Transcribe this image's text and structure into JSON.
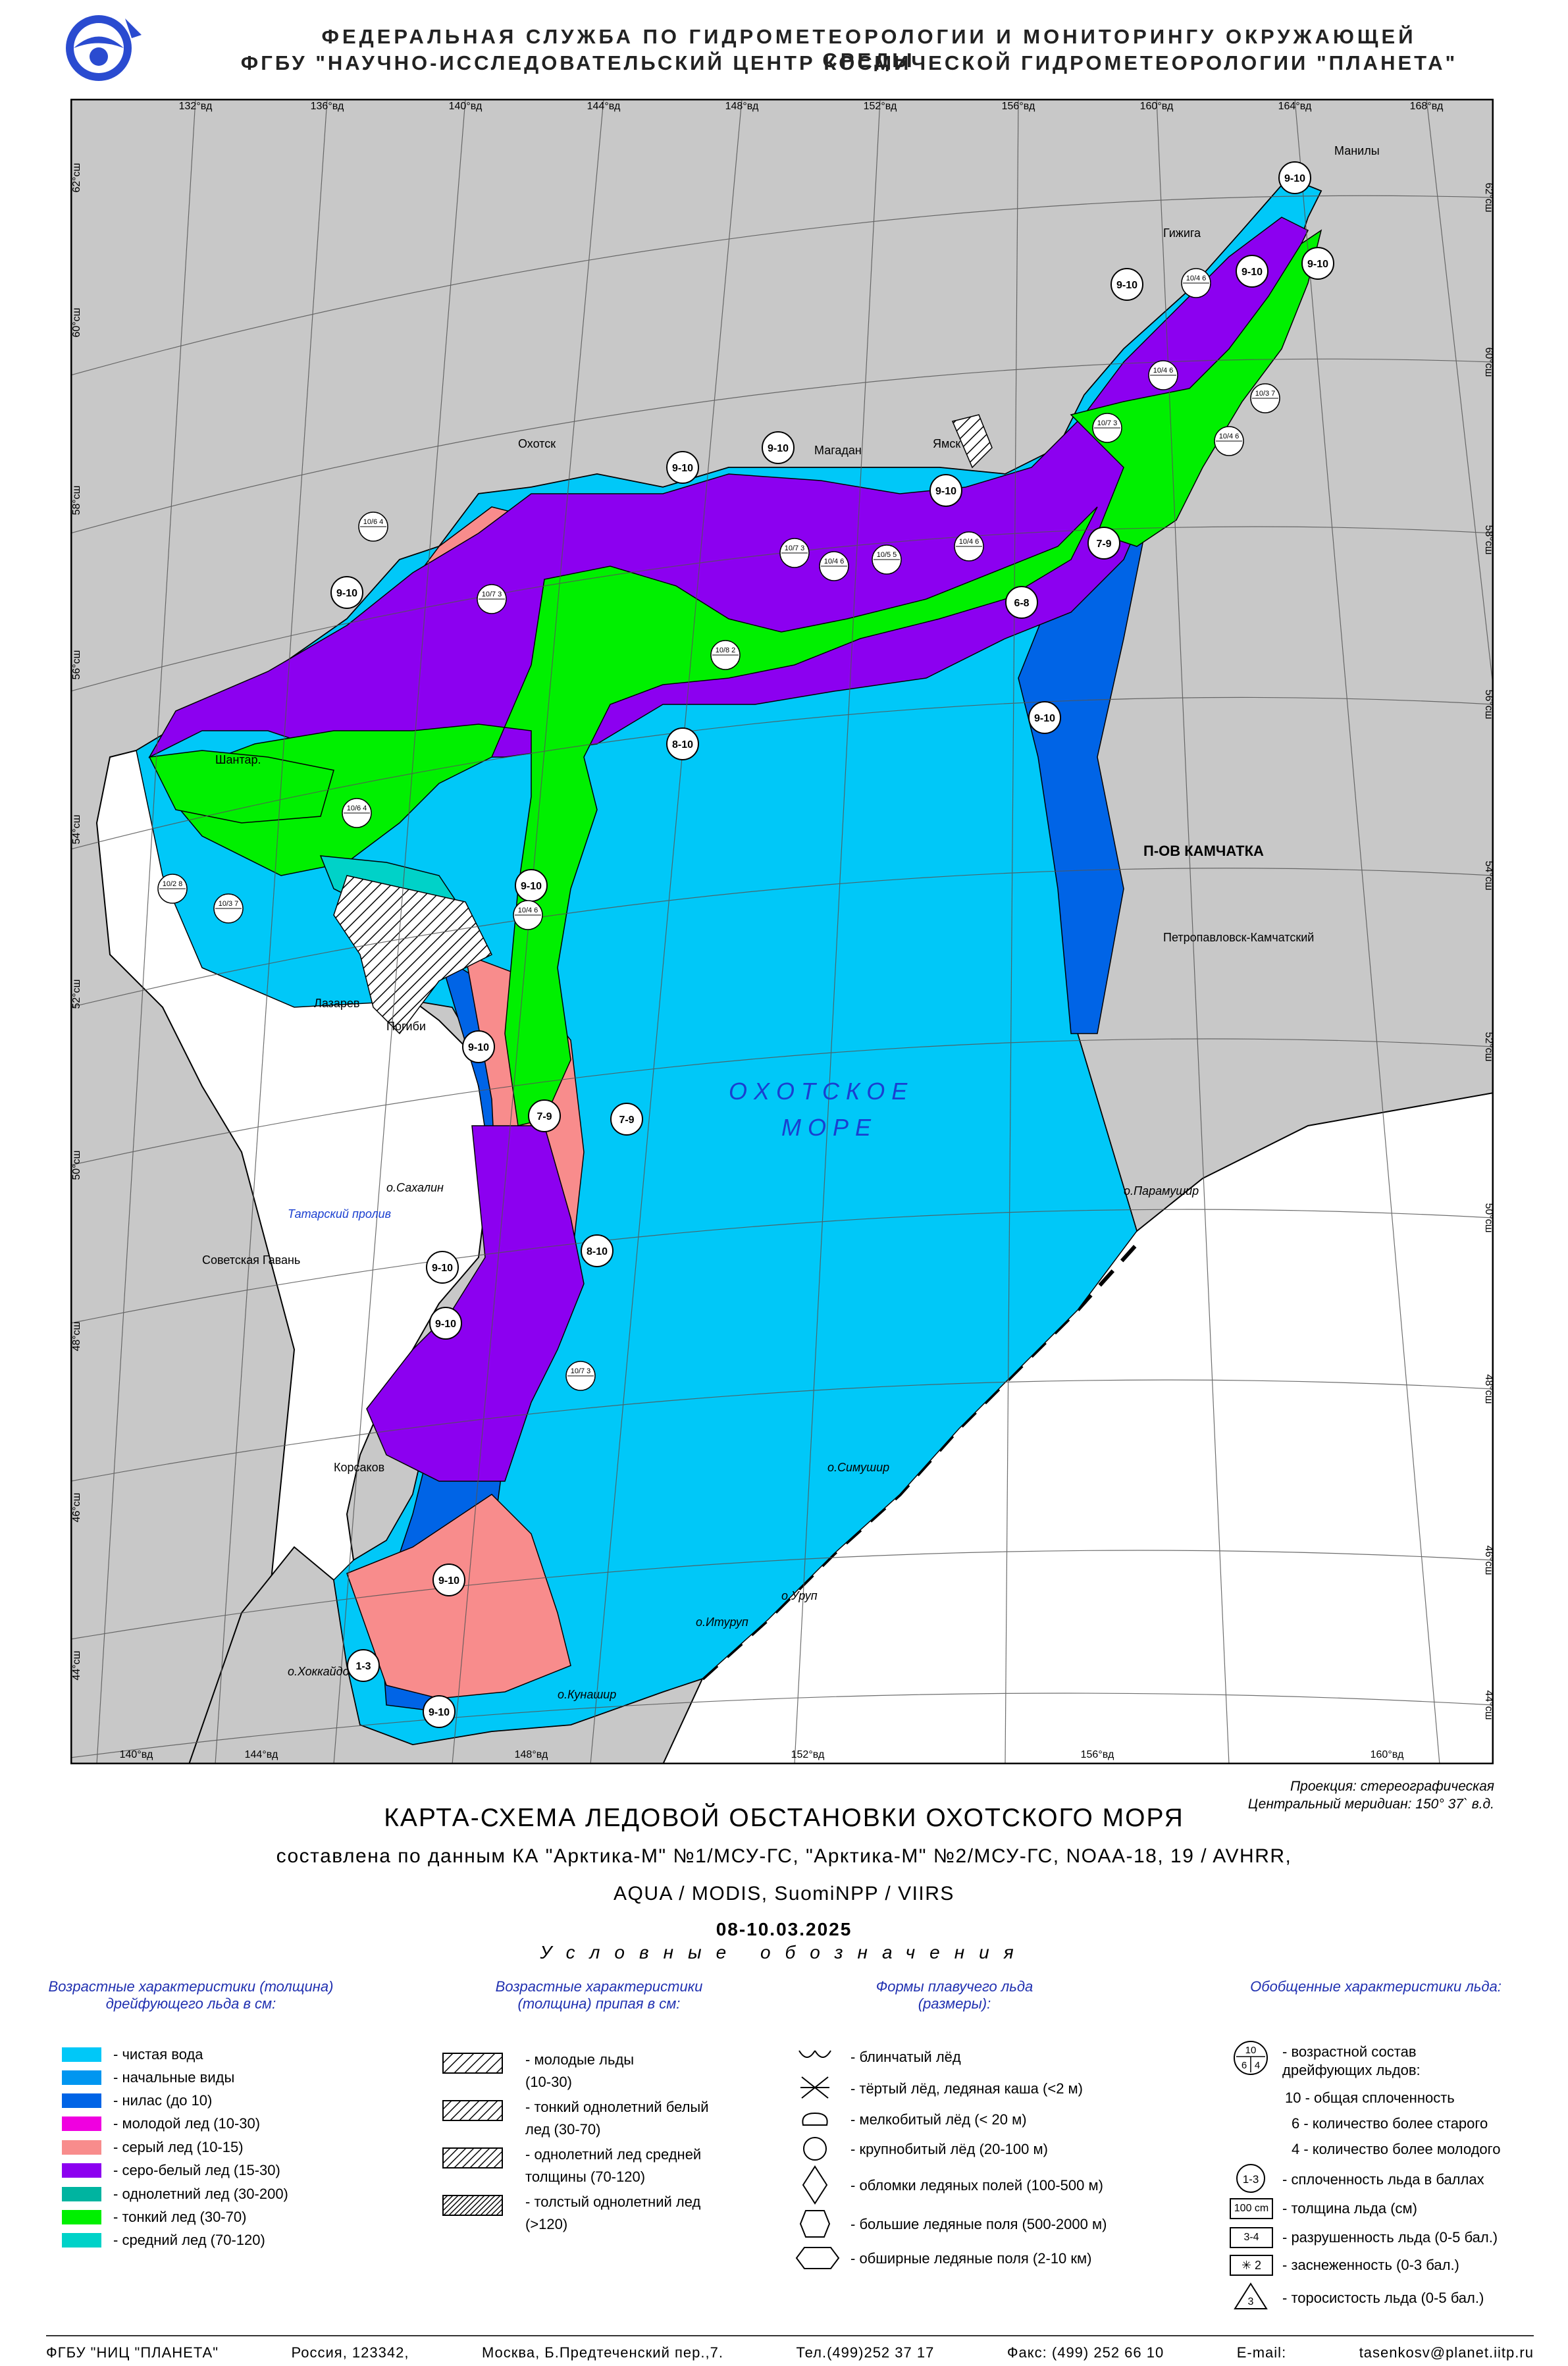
{
  "header": {
    "line1": "ФЕДЕРАЛЬНАЯ СЛУЖБА ПО ГИДРОМЕТЕОРОЛОГИИ И МОНИТОРИНГУ ОКРУЖАЮЩЕЙ СРЕДЫ",
    "line2": "ФГБУ \"НАУЧНО-ИССЛЕДОВАТЕЛЬСКИЙ ЦЕНТР КОСМИЧЕСКОЙ ГИДРОМЕТЕОРОЛОГИИ \"ПЛАНЕТА\""
  },
  "map": {
    "sea_name_1": "О Х О Т С К О Е",
    "sea_name_2": "М О Р Е",
    "peninsula": "П-ОВ КАМЧАТКА",
    "strait": "Татарский пролив",
    "top_lon_labels": [
      "132°вд",
      "136°вд",
      "140°вд",
      "144°вд",
      "148°вд",
      "152°вд",
      "156°вд",
      "160°вд",
      "164°вд",
      "168°вд"
    ],
    "bottom_lon_labels": [
      "140°вд",
      "144°вд",
      "148°вд",
      "152°вд",
      "156°вд",
      "160°вд"
    ],
    "left_lat_labels": [
      "62°сш",
      "60°сш",
      "58°сш",
      "56°сш",
      "54°сш",
      "52°сш",
      "50°сш",
      "48°сш",
      "46°сш",
      "44°сш"
    ],
    "right_lat_labels": [
      "62°сш",
      "60°сш",
      "58°сш",
      "56°сш",
      "54°сш",
      "52°сш",
      "50°сш",
      "48°сш",
      "46°сш",
      "44°сш"
    ],
    "places": {
      "manily": "Манилы",
      "gizhiga": "Гижига",
      "okhotsk": "Охотск",
      "magadan": "Магадан",
      "yamsk": "Ямск",
      "shantary": "Шантар.",
      "lazarev": "Лазарев",
      "pogibi": "Погиби",
      "sakhalin": "о.Сахалин",
      "sovgavan": "Советская Гавань",
      "korsakov": "Корсаков",
      "hokkaido": "о.Хоккайдо",
      "petropavlovsk": "Петропавловск-Камчатский",
      "paramushir": "о.Парамушир",
      "simushir": "о.Симушир",
      "urup": "о.Уруп",
      "iturup": "о.Итуруп",
      "kunashir": "о.Кунашир"
    },
    "concentration_labels": [
      "9-10",
      "9-10",
      "9-10",
      "9-10",
      "9-10",
      "9-10",
      "9-10",
      "9-10",
      "7-9",
      "6-8",
      "9-10",
      "8-10",
      "9-10",
      "7-9",
      "9-10",
      "7-9",
      "8-10",
      "9-10",
      "9-10",
      "9-10",
      "1-3",
      "9-10"
    ],
    "egg_codes": [
      "10/4 6",
      "10/4 6",
      "10/7 3",
      "10/3 7",
      "10/4 6",
      "10/6 4",
      "10/7 3",
      "10/8 2",
      "10/4 6",
      "10/7 3",
      "10/4 6",
      "10/5 5",
      "10/6 4",
      "10/2 8",
      "10/3 7",
      "10/4 6",
      "10/7 3"
    ]
  },
  "projection": {
    "line1": "Проекция: стереографическая",
    "line2": "Центральный меридиан: 150° 37` в.д."
  },
  "title": "КАРТА-СХЕМА ЛЕДОВОЙ ОБСТАНОВКИ ОХОТСКОГО МОРЯ",
  "source_line1": "составлена по данным КА \"Арктика-М\" №1/МСУ-ГС, \"Арктика-М\" №2/МСУ-ГС, NOAA-18, 19 / AVHRR,",
  "source_line2": "AQUA / MODIS, SuomiNPP / VIIRS",
  "date": "08-10.03.2025",
  "legend_heading": "Условные обозначения",
  "legend": {
    "col1_title": "Возрастные характеристики (толщина) дрейфующего льда в см:",
    "col1_items": [
      {
        "label": "- чистая вода",
        "color": "#00c8f8"
      },
      {
        "label": "- начальные виды",
        "color": "#0096f0"
      },
      {
        "label": "- нилас (до 10)",
        "color": "#0064e6"
      },
      {
        "label": "- молодой лед (10-30)",
        "color": "#f000e0"
      },
      {
        "label": "- серый лед (10-15)",
        "color": "#f88c8c"
      },
      {
        "label": "- серо-белый лед (15-30)",
        "color": "#8c00f0"
      },
      {
        "label": "- однолетний лед (30-200)",
        "color": "#00b4a0"
      },
      {
        "label": "- тонкий лед (30-70)",
        "color": "#00f000"
      },
      {
        "label": "- средний лед (70-120)",
        "color": "#00d2c8"
      }
    ],
    "col2_title": "Возрастные характеристики (толщина) припая в см:",
    "col2_items": [
      {
        "label1": "- молодые льды",
        "label2": "(10-30)"
      },
      {
        "label1": "- тонкий однолетний белый",
        "label2": "лед (30-70)"
      },
      {
        "label1": "- однолетний лед средней",
        "label2": "толщины (70-120)"
      },
      {
        "label1": "- толстый однолетний лед",
        "label2": "(>120)"
      }
    ],
    "col3_title": "Формы плавучего льда (размеры):",
    "col3_items": [
      "- блинчатый лёд",
      "- тёртый лёд, ледяная каша (<2 м)",
      "- мелкобитый лёд (< 20 м)",
      "- крупнобитый лёд (20-100 м)",
      "- обломки ледяных полей (100-500 м)",
      "- большие ледяные поля (500-2000 м)",
      "- обширные ледяные поля (2-10 км)"
    ],
    "col4_title": "Обобщенные характеристики льда:",
    "col4_items": {
      "egg_top": "10",
      "egg_left": "6",
      "egg_right": "4",
      "age": "- возрастной состав",
      "age2": "дрейфующих льдов:",
      "d1": "10 - общая сплоченность",
      "d2": "6 - количество более старого",
      "d3": "4 - количество более молодого",
      "conc_symbol": "1-3",
      "conc": "- сплоченность льда в баллах",
      "thick_symbol": "100 cm",
      "thick": "- толщина льда (см)",
      "decay_symbol": "3-4",
      "decay": "- разрушенность льда (0-5 бал.)",
      "snow_symbol": "✳ 2",
      "snow": "- заснеженность (0-3 бал.)",
      "ridge_symbol": "3",
      "ridge": "- торосистость льда (0-5 бал.)"
    }
  },
  "footer": {
    "org": "ФГБУ \"НИЦ \"ПЛАНЕТА\"",
    "country": "Россия, 123342,",
    "address": "Москва, Б.Предтеченский пер.,7.",
    "tel": "Тел.(499)252 37 17",
    "fax": "Факс: (499) 252 66 10",
    "email_label": "E-mail:",
    "email": "tasenkosv@planet.iitp.ru"
  },
  "colors": {
    "land": "#c8c8c8",
    "water": "#00c8f8",
    "nilas": "#0064e6",
    "initial": "#0096f0",
    "grey": "#f88c8c",
    "greywhite": "#8c00f0",
    "thin": "#00f000",
    "medium": "#00d2c8"
  }
}
